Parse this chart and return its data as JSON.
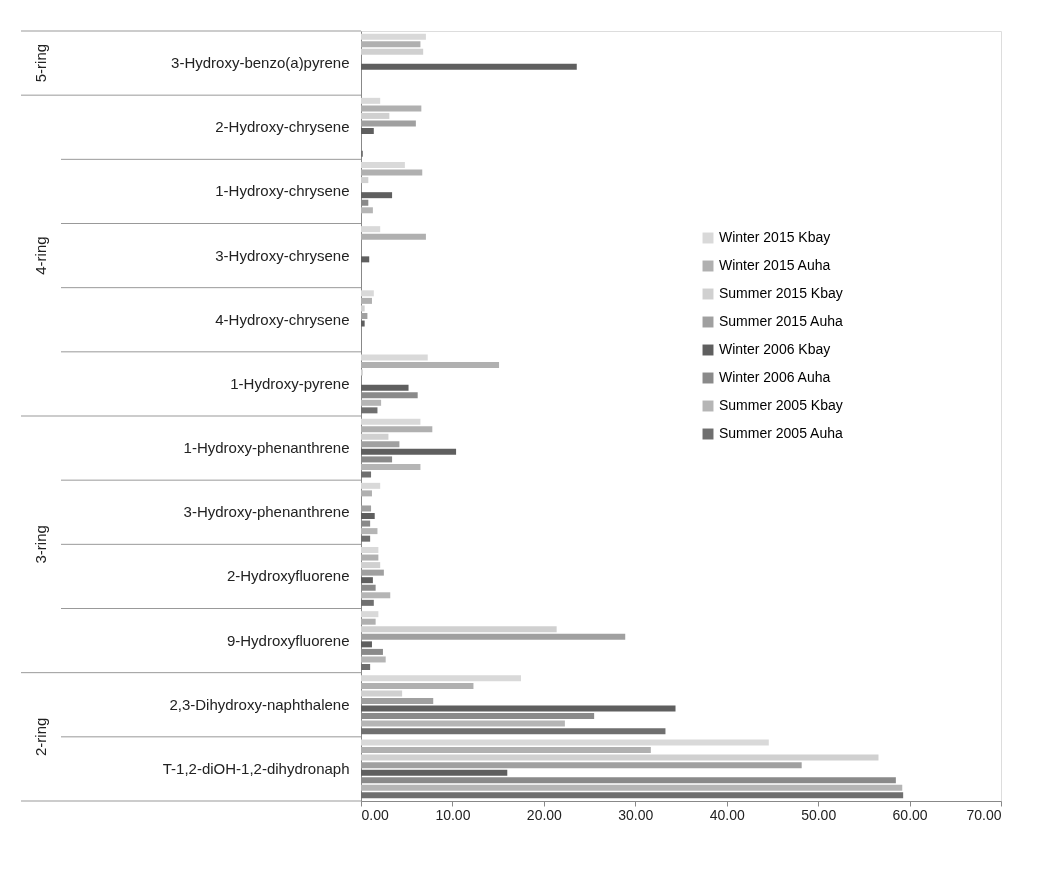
{
  "chart_data": {
    "type": "bar",
    "orientation": "horizontal",
    "categories": [
      "3-Hydroxy-benzo(a)pyrene",
      "2-Hydroxy-chrysene",
      "1-Hydroxy-chrysene",
      "3-Hydroxy-chrysene",
      "4-Hydroxy-chrysene",
      "1-Hydroxy-pyrene",
      "1-Hydroxy-phenanthrene",
      "3-Hydroxy-phenanthrene",
      "2-Hydroxyfluorene",
      "9-Hydroxyfluorene",
      "2,3-Dihydroxy-naphthalene",
      "T-1,2-diOH-1,2-dihydronaph"
    ],
    "series": [
      {
        "name": "Winter 2015 Kbay",
        "color": "#d9d9d9",
        "values": [
          7.1,
          2.1,
          4.8,
          2.1,
          1.4,
          7.3,
          6.5,
          2.1,
          1.9,
          1.9,
          17.5,
          44.6
        ]
      },
      {
        "name": "Winter 2015 Auha",
        "color": "#b0b0b0",
        "values": [
          6.5,
          6.6,
          6.7,
          7.1,
          1.2,
          15.1,
          7.8,
          1.2,
          1.9,
          1.6,
          12.3,
          31.7
        ]
      },
      {
        "name": "Summer 2015 Kbay",
        "color": "#d0d0d0",
        "values": [
          6.8,
          3.1,
          0.8,
          null,
          0.4,
          0.2,
          3.0,
          null,
          2.1,
          21.4,
          4.5,
          56.6
        ]
      },
      {
        "name": "Summer 2015 Auha",
        "color": "#a0a0a0",
        "values": [
          null,
          6.0,
          null,
          null,
          0.7,
          null,
          4.2,
          1.1,
          2.5,
          28.9,
          7.9,
          48.2
        ]
      },
      {
        "name": "Winter 2006 Kbay",
        "color": "#5f5f5f",
        "values": [
          23.6,
          1.4,
          3.4,
          0.9,
          0.4,
          5.2,
          10.4,
          1.5,
          1.3,
          1.2,
          34.4,
          16.0
        ]
      },
      {
        "name": "Winter 2006 Auha",
        "color": "#8a8a8a",
        "values": [
          null,
          null,
          0.8,
          null,
          null,
          6.2,
          3.4,
          1.0,
          1.6,
          2.4,
          25.5,
          58.5
        ]
      },
      {
        "name": "Summer 2005 Kbay",
        "color": "#b5b5b5",
        "values": [
          null,
          null,
          1.3,
          null,
          null,
          2.2,
          6.5,
          1.8,
          3.2,
          2.7,
          22.3,
          59.2
        ]
      },
      {
        "name": "Summer 2005 Auha",
        "color": "#6f6f6f",
        "values": [
          null,
          0.2,
          null,
          null,
          null,
          1.8,
          1.1,
          1.0,
          1.4,
          1.0,
          33.3,
          59.3
        ]
      }
    ],
    "xlim": [
      0,
      70
    ],
    "xticks": [
      {
        "value": 0,
        "label": "0.00"
      },
      {
        "value": 10,
        "label": "10.00"
      },
      {
        "value": 20,
        "label": "20.00"
      },
      {
        "value": 30,
        "label": "30.00"
      },
      {
        "value": 40,
        "label": "40.00"
      },
      {
        "value": 50,
        "label": "50.00"
      },
      {
        "value": 60,
        "label": "60.00"
      },
      {
        "value": 70,
        "label": "70.00"
      }
    ],
    "annotations": [
      "5-ring",
      "4-ring",
      "3-ring",
      "2-ring"
    ],
    "legend": "right",
    "grid": false
  }
}
